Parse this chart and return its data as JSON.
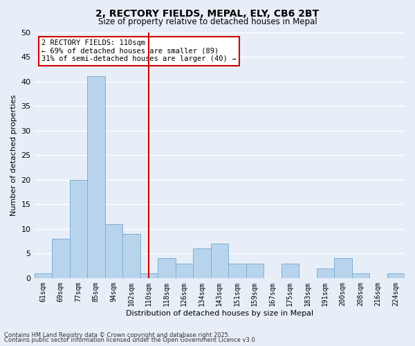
{
  "title": "2, RECTORY FIELDS, MEPAL, ELY, CB6 2BT",
  "subtitle": "Size of property relative to detached houses in Mepal",
  "xlabel": "Distribution of detached houses by size in Mepal",
  "ylabel": "Number of detached properties",
  "bar_labels": [
    "61sqm",
    "69sqm",
    "77sqm",
    "85sqm",
    "94sqm",
    "102sqm",
    "110sqm",
    "118sqm",
    "126sqm",
    "134sqm",
    "143sqm",
    "151sqm",
    "159sqm",
    "167sqm",
    "175sqm",
    "183sqm",
    "191sqm",
    "200sqm",
    "208sqm",
    "216sqm",
    "224sqm"
  ],
  "bar_values": [
    1,
    8,
    20,
    41,
    11,
    9,
    1,
    4,
    3,
    6,
    7,
    3,
    3,
    0,
    3,
    0,
    2,
    4,
    1,
    0,
    1
  ],
  "bar_color": "#b8d4ec",
  "bar_edge_color": "#7aafd4",
  "vline_index": 6,
  "vline_color": "#cc0000",
  "annotation_title": "2 RECTORY FIELDS: 110sqm",
  "annotation_line1": "← 69% of detached houses are smaller (89)",
  "annotation_line2": "31% of semi-detached houses are larger (40) →",
  "annotation_box_facecolor": "#ffffff",
  "annotation_box_edgecolor": "#cc0000",
  "ylim": [
    0,
    50
  ],
  "yticks": [
    0,
    5,
    10,
    15,
    20,
    25,
    30,
    35,
    40,
    45,
    50
  ],
  "bg_color": "#e8eef8",
  "grid_color": "#ffffff",
  "footnote1": "Contains HM Land Registry data © Crown copyright and database right 2025.",
  "footnote2": "Contains public sector information licensed under the Open Government Licence v3.0."
}
